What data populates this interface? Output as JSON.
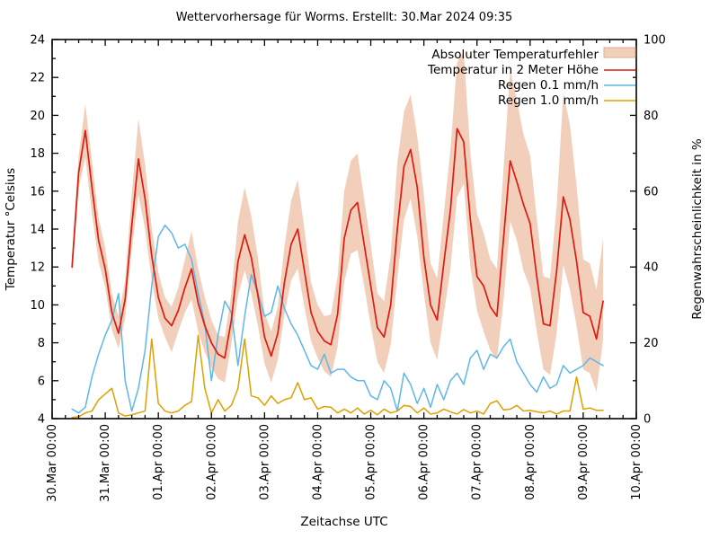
{
  "title": "Wettervorhersage für Worms. Erstellt: 30.Mar 2024 09:35",
  "axes": {
    "x": {
      "label": "Zeitachse UTC",
      "tick_labels": [
        "30.Mar 00:00",
        "31.Mar 00:00",
        "01.Apr 00:00",
        "02.Apr 00:00",
        "03.Apr 00:00",
        "04.Apr 00:00",
        "05.Apr 00:00",
        "06.Apr 00:00",
        "07.Apr 00:00",
        "08.Apr 00:00",
        "09.Apr 00:00",
        "10.Apr 00:00"
      ],
      "tick_hours": [
        0,
        24,
        48,
        72,
        96,
        120,
        144,
        168,
        192,
        216,
        240,
        264
      ],
      "minor_step_hours": 6,
      "range_hours": [
        0,
        264
      ]
    },
    "y_left": {
      "label": "Temperatur °Celsius",
      "min": 4,
      "max": 24,
      "tick_values": [
        4,
        6,
        8,
        10,
        12,
        14,
        16,
        18,
        20,
        22,
        24
      ],
      "minor_step": 1
    },
    "y_right": {
      "label": "Regenwahrscheinlichkeit in %",
      "min": 0,
      "max": 100,
      "tick_values": [
        0,
        20,
        40,
        60,
        80,
        100
      ],
      "minor_step": 10
    }
  },
  "legend": [
    {
      "label": "Absoluter Temperaturfehler",
      "type": "band",
      "color": "#f2cfba"
    },
    {
      "label": "Temperatur in 2 Meter Höhe",
      "type": "line",
      "color": "#dc1c13"
    },
    {
      "label": "Regen 0.1 mm/h",
      "type": "line",
      "color": "#5eb7e8"
    },
    {
      "label": "Regen 1.0 mm/h",
      "type": "line",
      "color": "#dfa000"
    }
  ],
  "chart_data": {
    "type": "line",
    "x_unit": "hours since 30.Mar 2024 00:00 UTC",
    "x_hours": [
      9,
      12,
      15,
      18,
      21,
      24,
      27,
      30,
      33,
      36,
      39,
      42,
      45,
      48,
      51,
      54,
      57,
      60,
      63,
      66,
      69,
      72,
      75,
      78,
      81,
      84,
      87,
      90,
      93,
      96,
      99,
      102,
      105,
      108,
      111,
      114,
      117,
      120,
      123,
      126,
      129,
      132,
      135,
      138,
      141,
      144,
      147,
      150,
      153,
      156,
      159,
      162,
      165,
      168,
      171,
      174,
      177,
      180,
      183,
      186,
      189,
      192,
      195,
      198,
      201,
      204,
      207,
      210,
      213,
      216,
      219,
      222,
      225,
      228,
      231,
      234,
      237,
      240,
      243,
      246,
      249
    ],
    "series": [
      {
        "name": "Absoluter Temperaturfehler",
        "axis": "left",
        "style": "band",
        "color": "#f2cfba",
        "high": [
          12.6,
          17.9,
          20.6,
          17.6,
          14.6,
          13.0,
          10.6,
          9.4,
          11.3,
          15.9,
          19.8,
          17.4,
          14.1,
          11.7,
          10.4,
          9.9,
          10.9,
          12.4,
          13.9,
          11.9,
          10.4,
          9.2,
          8.4,
          8.3,
          10.6,
          14.4,
          16.2,
          14.7,
          12.5,
          9.6,
          8.6,
          9.9,
          13.1,
          15.5,
          16.6,
          14.0,
          11.2,
          10.0,
          9.4,
          9.5,
          11.5,
          16.0,
          17.6,
          18.0,
          15.6,
          13.2,
          10.6,
          10.2,
          12.6,
          17.5,
          20.2,
          21.1,
          18.9,
          15.8,
          12.2,
          11.4,
          14.8,
          18.2,
          22.8,
          23.4,
          18.0,
          14.8,
          13.8,
          12.4,
          11.9,
          17.2,
          22.4,
          20.8,
          19.0,
          17.9,
          14.6,
          11.5,
          11.4,
          15.2,
          21.2,
          19.5,
          16.3,
          12.4,
          12.2,
          10.8,
          13.5
        ],
        "low": [
          11.6,
          16.1,
          17.8,
          14.8,
          12.3,
          10.9,
          8.7,
          7.7,
          9.3,
          12.9,
          15.8,
          14.0,
          11.3,
          9.3,
          8.3,
          7.5,
          8.6,
          9.6,
          10.3,
          8.6,
          7.5,
          6.7,
          6.1,
          5.9,
          7.9,
          10.5,
          11.8,
          10.6,
          8.9,
          6.9,
          5.9,
          7.1,
          9.5,
          11.3,
          11.9,
          9.9,
          8.1,
          7.2,
          6.5,
          6.2,
          7.8,
          11.2,
          12.7,
          12.9,
          11.0,
          8.9,
          7.0,
          6.4,
          7.9,
          11.4,
          14.5,
          15.6,
          13.6,
          10.6,
          8.0,
          7.1,
          9.5,
          11.9,
          15.7,
          16.4,
          12.0,
          9.7,
          8.6,
          7.6,
          7.1,
          10.2,
          14.4,
          13.4,
          11.8,
          10.9,
          8.6,
          6.6,
          6.3,
          8.5,
          12.1,
          10.8,
          8.9,
          6.6,
          6.4,
          5.4,
          8.2
        ]
      },
      {
        "name": "Temperatur in 2 Meter Höhe",
        "axis": "left",
        "style": "line",
        "color": "#dc1c13",
        "values": [
          12.0,
          17.0,
          19.2,
          16.2,
          13.4,
          11.9,
          9.6,
          8.5,
          10.3,
          14.2,
          17.7,
          15.6,
          12.6,
          10.4,
          9.3,
          8.9,
          9.7,
          10.9,
          11.9,
          10.1,
          8.9,
          8.0,
          7.4,
          7.2,
          9.2,
          12.3,
          13.7,
          12.5,
          10.5,
          8.3,
          7.3,
          8.5,
          11.2,
          13.2,
          14.0,
          11.8,
          9.6,
          8.6,
          8.1,
          7.9,
          9.5,
          13.5,
          15.0,
          15.4,
          13.2,
          11.0,
          8.8,
          8.3,
          10.0,
          14.0,
          17.3,
          18.2,
          16.2,
          12.5,
          10.0,
          9.2,
          12.2,
          15.0,
          19.3,
          18.6,
          14.5,
          11.5,
          11.0,
          9.9,
          9.4,
          13.5,
          17.6,
          16.5,
          15.3,
          14.3,
          11.5,
          9.0,
          8.9,
          11.8,
          15.7,
          14.5,
          12.3,
          9.6,
          9.4,
          8.2,
          10.2
        ]
      },
      {
        "name": "Regen 0.1 mm/h",
        "axis": "right",
        "style": "line",
        "color": "#5eb7e8",
        "values": [
          2.5,
          1.5,
          3,
          11,
          17,
          22,
          26,
          33,
          10,
          2,
          8,
          18,
          35,
          48,
          51,
          49,
          45,
          46,
          42,
          33,
          25,
          10,
          22,
          31,
          28,
          14,
          27,
          38,
          33,
          27,
          28,
          35,
          29,
          25,
          22,
          18,
          14,
          13,
          17,
          12,
          13,
          13,
          11,
          10,
          10,
          6,
          5,
          10,
          8,
          2,
          12,
          9,
          4,
          8,
          3,
          9,
          5,
          10,
          12,
          9,
          16,
          18,
          13,
          17,
          16,
          19,
          21,
          15,
          12,
          9,
          7,
          11,
          8,
          9,
          14,
          12,
          13,
          14,
          16,
          15,
          14
        ]
      },
      {
        "name": "Regen 1.0 mm/h",
        "axis": "right",
        "style": "line",
        "color": "#dfa000",
        "values": [
          0.3,
          0.5,
          1.5,
          2,
          5,
          6.5,
          8,
          1.5,
          0.7,
          1,
          1.5,
          2,
          21,
          4,
          2,
          1.5,
          2,
          3.5,
          4.5,
          22,
          8,
          1.5,
          5,
          2,
          3.5,
          8,
          21,
          6,
          5.5,
          3.5,
          6,
          4,
          5,
          5.5,
          9.5,
          5,
          5.5,
          2.5,
          3.2,
          3,
          1.5,
          2.5,
          1.5,
          2.8,
          1.2,
          2.2,
          1,
          2.5,
          1.5,
          2,
          3.5,
          3.2,
          1.5,
          2.8,
          1.2,
          1.5,
          2.5,
          1.8,
          1.2,
          2.4,
          1.5,
          2,
          1.2,
          4,
          4.7,
          2.3,
          2.5,
          3.5,
          2,
          2.2,
          1.8,
          1.5,
          2,
          1.2,
          2,
          2,
          11,
          2.5,
          2.8,
          2.2,
          2.2
        ]
      }
    ]
  }
}
